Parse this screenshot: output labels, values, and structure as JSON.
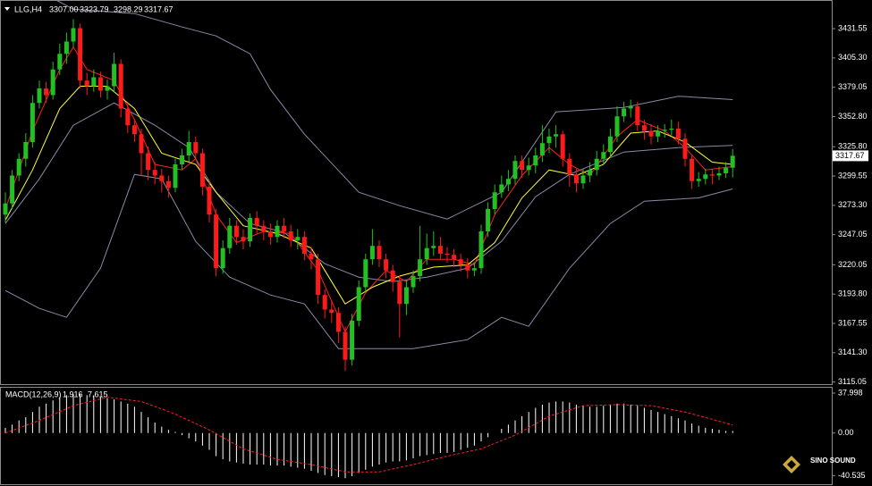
{
  "chart_data": [
    {
      "type": "candlestick",
      "title": "LLG,H4",
      "ohlc_labels": [
        "3307.00",
        "3323.79",
        "3298.29",
        "3317.67"
      ],
      "up_color": "#22c022",
      "down_color": "#ff1a1a",
      "ylim": [
        3113.15,
        3454.0
      ],
      "yticks": [
        3431.55,
        {
          "value": 3405.3,
          "label": "3405.30"
        },
        3379.05,
        {
          "value": 3352.8,
          "label": "3352.80"
        },
        {
          "value": 3325.8,
          "label": "3325.80"
        },
        3299.55,
        {
          "value": 3273.3,
          "label": "3273.30"
        },
        3247.05,
        3220.05,
        {
          "value": 3193.8,
          "label": "3193.80"
        },
        3167.55,
        {
          "value": 3141.3,
          "label": "3141.30"
        },
        3115.05
      ],
      "candles": [
        [
          3265,
          3285,
          3258,
          3275
        ],
        [
          3275,
          3305,
          3270,
          3300
        ],
        [
          3300,
          3320,
          3295,
          3315
        ],
        [
          3315,
          3338,
          3308,
          3330
        ],
        [
          3330,
          3372,
          3325,
          3365
        ],
        [
          3365,
          3385,
          3360,
          3378
        ],
        [
          3378,
          3384,
          3365,
          3372
        ],
        [
          3372,
          3402,
          3368,
          3395
        ],
        [
          3395,
          3418,
          3390,
          3409
        ],
        [
          3409,
          3428,
          3400,
          3420
        ],
        [
          3420,
          3440,
          3415,
          3432
        ],
        [
          3432,
          3436,
          3378,
          3385
        ],
        [
          3385,
          3392,
          3372,
          3380
        ],
        [
          3380,
          3395,
          3375,
          3388
        ],
        [
          3388,
          3393,
          3370,
          3376
        ],
        [
          3376,
          3386,
          3368,
          3380
        ],
        [
          3380,
          3410,
          3375,
          3400
        ],
        [
          3400,
          3404,
          3352,
          3360
        ],
        [
          3360,
          3365,
          3338,
          3345
        ],
        [
          3345,
          3350,
          3330,
          3337
        ],
        [
          3337,
          3342,
          3300,
          3320
        ],
        [
          3320,
          3326,
          3296,
          3305
        ],
        [
          3305,
          3312,
          3292,
          3300
        ],
        [
          3300,
          3306,
          3285,
          3295
        ],
        [
          3295,
          3300,
          3280,
          3289
        ],
        [
          3289,
          3315,
          3285,
          3310
        ],
        [
          3310,
          3324,
          3305,
          3318
        ],
        [
          3318,
          3340,
          3312,
          3330
        ],
        [
          3330,
          3335,
          3314,
          3320
        ],
        [
          3320,
          3324,
          3282,
          3290
        ],
        [
          3290,
          3295,
          3258,
          3265
        ],
        [
          3265,
          3270,
          3210,
          3217
        ],
        [
          3217,
          3242,
          3212,
          3235
        ],
        [
          3235,
          3262,
          3230,
          3255
        ],
        [
          3255,
          3260,
          3238,
          3245
        ],
        [
          3245,
          3252,
          3234,
          3241
        ],
        [
          3241,
          3266,
          3236,
          3262
        ],
        [
          3262,
          3268,
          3248,
          3255
        ],
        [
          3255,
          3260,
          3242,
          3250
        ],
        [
          3250,
          3257,
          3238,
          3245
        ],
        [
          3245,
          3260,
          3240,
          3255
        ],
        [
          3255,
          3262,
          3244,
          3250
        ],
        [
          3250,
          3256,
          3236,
          3242
        ],
        [
          3242,
          3252,
          3234,
          3245
        ],
        [
          3245,
          3250,
          3224,
          3230
        ],
        [
          3230,
          3236,
          3216,
          3225
        ],
        [
          3225,
          3230,
          3185,
          3193
        ],
        [
          3193,
          3198,
          3172,
          3180
        ],
        [
          3180,
          3188,
          3168,
          3177
        ],
        [
          3177,
          3182,
          3150,
          3160
        ],
        [
          3160,
          3165,
          3125,
          3135
        ],
        [
          3135,
          3176,
          3130,
          3170
        ],
        [
          3170,
          3206,
          3165,
          3200
        ],
        [
          3200,
          3230,
          3195,
          3225
        ],
        [
          3225,
          3252,
          3220,
          3237
        ],
        [
          3237,
          3242,
          3218,
          3225
        ],
        [
          3225,
          3230,
          3208,
          3215
        ],
        [
          3215,
          3220,
          3196,
          3205
        ],
        [
          3205,
          3210,
          3155,
          3185
        ],
        [
          3185,
          3206,
          3175,
          3200
        ],
        [
          3200,
          3215,
          3195,
          3210
        ],
        [
          3210,
          3255,
          3205,
          3225
        ],
        [
          3225,
          3248,
          3220,
          3235
        ],
        [
          3235,
          3250,
          3228,
          3237
        ],
        [
          3237,
          3245,
          3225,
          3230
        ],
        [
          3230,
          3236,
          3222,
          3229
        ],
        [
          3229,
          3234,
          3218,
          3225
        ],
        [
          3225,
          3230,
          3214,
          3220
        ],
        [
          3220,
          3226,
          3208,
          3215
        ],
        [
          3215,
          3222,
          3210,
          3217
        ],
        [
          3217,
          3256,
          3212,
          3250
        ],
        [
          3250,
          3276,
          3245,
          3270
        ],
        [
          3270,
          3292,
          3265,
          3285
        ],
        [
          3285,
          3300,
          3280,
          3292
        ],
        [
          3292,
          3305,
          3286,
          3297
        ],
        [
          3297,
          3318,
          3292,
          3313
        ],
        [
          3313,
          3318,
          3298,
          3305
        ],
        [
          3305,
          3316,
          3300,
          3309
        ],
        [
          3309,
          3325,
          3302,
          3318
        ],
        [
          3318,
          3345,
          3312,
          3329
        ],
        [
          3329,
          3342,
          3320,
          3335
        ],
        [
          3335,
          3345,
          3325,
          3337
        ],
        [
          3337,
          3340,
          3308,
          3315
        ],
        [
          3315,
          3320,
          3290,
          3301
        ],
        [
          3301,
          3306,
          3285,
          3293
        ],
        [
          3293,
          3306,
          3288,
          3300
        ],
        [
          3300,
          3312,
          3294,
          3305
        ],
        [
          3305,
          3322,
          3300,
          3315
        ],
        [
          3315,
          3328,
          3310,
          3321
        ],
        [
          3321,
          3342,
          3316,
          3335
        ],
        [
          3335,
          3362,
          3330,
          3353
        ],
        [
          3353,
          3366,
          3348,
          3360
        ],
        [
          3360,
          3368,
          3352,
          3362
        ],
        [
          3362,
          3366,
          3340,
          3345
        ],
        [
          3345,
          3350,
          3332,
          3340
        ],
        [
          3340,
          3346,
          3328,
          3335
        ],
        [
          3335,
          3345,
          3330,
          3340
        ],
        [
          3340,
          3346,
          3334,
          3341
        ],
        [
          3341,
          3350,
          3336,
          3342
        ],
        [
          3342,
          3348,
          3328,
          3333
        ],
        [
          3333,
          3338,
          3308,
          3315
        ],
        [
          3315,
          3318,
          3288,
          3295
        ],
        [
          3295,
          3303,
          3290,
          3297
        ],
        [
          3297,
          3306,
          3292,
          3301
        ],
        [
          3301,
          3306,
          3292,
          3300
        ],
        [
          3300,
          3308,
          3296,
          3302
        ],
        [
          3302,
          3312,
          3298,
          3307
        ],
        [
          3307,
          3323.79,
          3298.29,
          3317.67
        ]
      ],
      "lines": [
        {
          "color": "#8a8aa8",
          "x": [
            5,
            10,
            19,
            26,
            31,
            36,
            39,
            44,
            52,
            58,
            65,
            73,
            81,
            91,
            99,
            107
          ],
          "values": [
            3465,
            3449,
            3445,
            3433,
            3425,
            3409,
            3377,
            3337,
            3285,
            3273,
            3261,
            3285,
            3357,
            3361,
            3371,
            3368
          ]
        },
        {
          "color": "#8a8aa8",
          "x": [
            0,
            5,
            10,
            16,
            22,
            27,
            31,
            36,
            41,
            47,
            52,
            57,
            62,
            68,
            73,
            78,
            83,
            91,
            99,
            107
          ],
          "values": [
            3257,
            3297,
            3345,
            3365,
            3345,
            3325,
            3285,
            3257,
            3249,
            3221,
            3209,
            3205,
            3209,
            3217,
            3241,
            3281,
            3301,
            3321,
            3325,
            3327
          ]
        },
        {
          "color": "#8a8aa8",
          "x": [
            0,
            5,
            9,
            14,
            19,
            23,
            28,
            33,
            39,
            44,
            49,
            60,
            68,
            73,
            77,
            83,
            89,
            94,
            102,
            107
          ],
          "values": [
            3197,
            3181,
            3173,
            3217,
            3301,
            3297,
            3241,
            3209,
            3193,
            3185,
            3145,
            3145,
            3153,
            3173,
            3165,
            3217,
            3257,
            3277,
            3280,
            3288
          ]
        },
        {
          "color": "#ff2020",
          "x": [
            0,
            4,
            8,
            10,
            12,
            16,
            19,
            22,
            26,
            28,
            31,
            34,
            38,
            42,
            46,
            50,
            53,
            56,
            59,
            62,
            66,
            69,
            72,
            76,
            80,
            83,
            86,
            90,
            93,
            97,
            100,
            103,
            107
          ],
          "values": [
            3270,
            3340,
            3395,
            3415,
            3395,
            3385,
            3350,
            3310,
            3305,
            3315,
            3265,
            3240,
            3250,
            3248,
            3215,
            3160,
            3195,
            3215,
            3205,
            3225,
            3225,
            3220,
            3265,
            3300,
            3325,
            3310,
            3300,
            3335,
            3350,
            3340,
            3325,
            3305,
            3308
          ]
        },
        {
          "color": "#ffff30",
          "x": [
            0,
            4,
            8,
            11,
            15,
            19,
            23,
            28,
            31,
            35,
            40,
            45,
            50,
            54,
            58,
            63,
            68,
            72,
            76,
            80,
            84,
            88,
            92,
            96,
            100,
            104,
            107
          ],
          "values": [
            3260,
            3305,
            3360,
            3380,
            3380,
            3360,
            3320,
            3310,
            3285,
            3255,
            3248,
            3235,
            3185,
            3200,
            3210,
            3218,
            3220,
            3240,
            3280,
            3305,
            3300,
            3310,
            3338,
            3340,
            3330,
            3312,
            3310
          ]
        }
      ]
    },
    {
      "type": "macd",
      "title": "MACD(12,26,9)",
      "hist_color": "#ffffff",
      "ylim": [
        -47,
        41.4
      ],
      "yticks": [
        37.998,
        {
          "value": 0,
          "label": "0.00"
        },
        -40.535
      ],
      "histogram": [
        5,
        8,
        12,
        15,
        20,
        25,
        28,
        31,
        34,
        36,
        37,
        37,
        36,
        36,
        34,
        33,
        32,
        30,
        28,
        25,
        20,
        15,
        10,
        6,
        3,
        1,
        -2,
        -5,
        -8,
        -12,
        -16,
        -22,
        -25,
        -27,
        -28,
        -29,
        -30,
        -30,
        -30,
        -31,
        -31,
        -31,
        -32,
        -33,
        -34,
        -36,
        -38,
        -40,
        -41,
        -42,
        -43,
        -41,
        -38,
        -35,
        -32,
        -30,
        -28,
        -27,
        -27,
        -26,
        -24,
        -22,
        -21,
        -20,
        -19,
        -19,
        -18,
        -16,
        -14,
        -12,
        -8,
        -4,
        0,
        4,
        8,
        12,
        16,
        20,
        24,
        27,
        29,
        30,
        30,
        29,
        27,
        26,
        25,
        25,
        26,
        27,
        28,
        28,
        27,
        26,
        24,
        22,
        20,
        18,
        16,
        14,
        12,
        9,
        7,
        5,
        4,
        3,
        2,
        1.916
      ],
      "signal": {
        "color": "#ff2020",
        "x": [
          0,
          5,
          10,
          15,
          20,
          25,
          30,
          35,
          40,
          45,
          50,
          55,
          60,
          65,
          70,
          75,
          80,
          85,
          90,
          95,
          100,
          104,
          107
        ],
        "values": [
          0,
          12,
          26,
          34,
          30,
          18,
          3,
          -15,
          -25,
          -30,
          -37,
          -37,
          -30,
          -22,
          -15,
          -2,
          16,
          26,
          27,
          26,
          20,
          13,
          7.615
        ]
      }
    }
  ],
  "logo": "SINO SOUND"
}
